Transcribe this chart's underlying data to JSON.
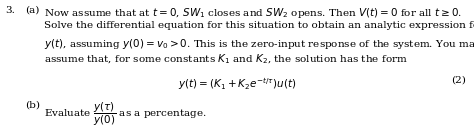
{
  "number": "3.",
  "part_a_label": "(a)",
  "part_a_text_line1": "Now assume that at $t = 0$, $SW_1$ closes and $SW_2$ opens. Then $V(t) = 0$ for all $t \\geq 0$.",
  "part_a_text_line2": "Solve the differential equation for this situation to obtain an analytic expression for",
  "part_a_text_line3": "$y(t)$, assuming $y(0) = v_0 > 0$. This is the zero-input response of the system. You may",
  "part_a_text_line4": "assume that, for some constants $K_1$ and $K_2$, the solution has the form",
  "equation": "$y(t) = (K_1 + K_2 e^{-t/\\tau})u(t)$",
  "eq_number": "(2)",
  "part_b_label": "(b)",
  "part_b_text": "Evaluate $\\dfrac{y(\\tau)}{y(0)}$ as a percentage.",
  "background_color": "#ffffff",
  "text_color": "#000000",
  "fontsize": 7.5,
  "fig_width": 4.74,
  "fig_height": 1.33,
  "dpi": 100
}
